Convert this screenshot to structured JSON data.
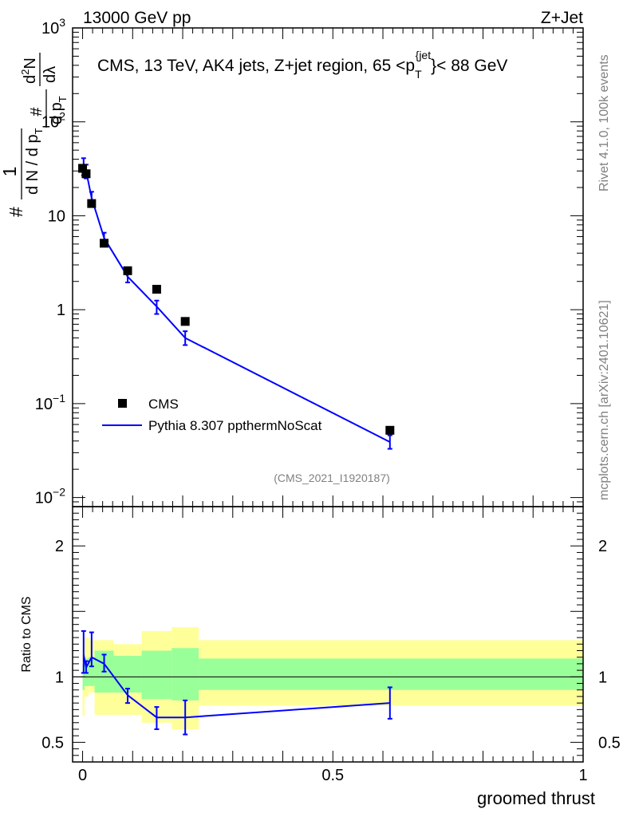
{
  "header": {
    "left_title": "13000 GeV pp",
    "right_title": "Z+Jet"
  },
  "side_labels": {
    "top": "Rivet 4.1.0,  100k events",
    "bottom": "mcplots.cern.ch [arXiv:2401.10621]"
  },
  "chart_data": [
    {
      "type": "scatter",
      "panel": "main",
      "title": "CMS, 13 TeV, AK4 jets, Z+jet region, 65 <p_T^{jet}< 88 GeV",
      "title_parts": {
        "main": "CMS, 13 TeV, AK4 jets, Z+jet region, 65 <p",
        "sub": "T",
        "sup": "{jet",
        "tail": "}< 88 GeV"
      },
      "ylabel_parts": {
        "prefix": "#",
        "frac1_num": "1",
        "frac1_den": "d N / d p",
        "frac1_den_sub": "T",
        "frac2_num": "#",
        "frac2_den": "d p",
        "frac2_den_sub": "T",
        "frac3_num": "d",
        "frac3_num_sup": "2",
        "frac3_num_tail": "N",
        "frac3_den": "dλ"
      },
      "yscale": "log",
      "ylim": [
        0.008,
        1000
      ],
      "xlim": [
        -0.02,
        1.0
      ],
      "ytick_labels": [
        {
          "value": 0.01,
          "base": "10",
          "exp": "−2"
        },
        {
          "value": 0.1,
          "base": "10",
          "exp": "−1"
        },
        {
          "value": 1,
          "base": "1",
          "exp": ""
        },
        {
          "value": 10,
          "base": "10",
          "exp": ""
        },
        {
          "value": 100,
          "base": "10",
          "exp": "2"
        },
        {
          "value": 1000,
          "base": "10",
          "exp": "3"
        }
      ],
      "watermark": "(CMS_2021_I1920187)",
      "legend": {
        "position": "bottom-left",
        "entries": [
          "CMS",
          "Pythia 8.307 ppthermNoScat"
        ]
      },
      "series": [
        {
          "name": "CMS",
          "style": "markers",
          "color": "#000000",
          "x": [
            0.0,
            0.007,
            0.018,
            0.043,
            0.09,
            0.148,
            0.205,
            0.614
          ],
          "y": [
            32,
            28,
            13.5,
            5.1,
            2.6,
            1.65,
            0.75,
            0.052
          ]
        },
        {
          "name": "Pythia 8.307 ppthermNoScat",
          "style": "line",
          "color": "#0000ff",
          "x": [
            0.002,
            0.007,
            0.018,
            0.043,
            0.09,
            0.148,
            0.205,
            0.614
          ],
          "y": [
            34,
            30,
            15.5,
            5.8,
            2.25,
            1.08,
            0.5,
            0.039
          ],
          "err_lo": [
            27,
            25,
            13.5,
            5.0,
            1.95,
            0.9,
            0.42,
            0.033
          ],
          "err_hi": [
            41,
            35,
            18.0,
            6.6,
            2.55,
            1.25,
            0.59,
            0.046
          ]
        }
      ]
    },
    {
      "type": "line",
      "panel": "ratio",
      "ylabel": "Ratio to CMS",
      "xlabel": "groomed thrust",
      "xlim": [
        -0.02,
        1.0
      ],
      "ylim": [
        0.35,
        2.3
      ],
      "xtick_labels": [
        {
          "value": 0,
          "label": "0"
        },
        {
          "value": 0.5,
          "label": "0.5"
        },
        {
          "value": 1,
          "label": "1"
        }
      ],
      "ytick_labels": [
        {
          "value": 0.5,
          "label": "0.5"
        },
        {
          "value": 1,
          "label": "1"
        },
        {
          "value": 2,
          "label": "2"
        }
      ],
      "bands": {
        "bin_edges": [
          0.0,
          0.004,
          0.012,
          0.024,
          0.062,
          0.118,
          0.178,
          0.232,
          1.0
        ],
        "yellow": [
          [
            0.7,
            1.2
          ],
          [
            0.85,
            1.3
          ],
          [
            0.88,
            1.28
          ],
          [
            0.71,
            1.28
          ],
          [
            0.71,
            1.25
          ],
          [
            0.65,
            1.35
          ],
          [
            0.6,
            1.38
          ],
          [
            0.78,
            1.28
          ]
        ],
        "green": [
          [
            0.9,
            1.1
          ],
          [
            0.93,
            1.14
          ],
          [
            0.93,
            1.15
          ],
          [
            0.88,
            1.2
          ],
          [
            0.88,
            1.16
          ],
          [
            0.83,
            1.2
          ],
          [
            0.82,
            1.22
          ],
          [
            0.9,
            1.14
          ]
        ]
      },
      "series": [
        {
          "name": "Pythia 8.307 ppthermNoScat / CMS",
          "color": "#0000ff",
          "x": [
            0.002,
            0.007,
            0.018,
            0.043,
            0.09,
            0.148,
            0.205,
            0.614
          ],
          "y": [
            1.17,
            1.07,
            1.15,
            1.1,
            0.86,
            0.69,
            0.69,
            0.8
          ],
          "err_lo": [
            1.03,
            1.03,
            1.08,
            1.04,
            0.8,
            0.6,
            0.56,
            0.68
          ],
          "err_hi": [
            1.35,
            1.12,
            1.34,
            1.17,
            0.91,
            0.77,
            0.82,
            0.92
          ]
        }
      ]
    }
  ]
}
